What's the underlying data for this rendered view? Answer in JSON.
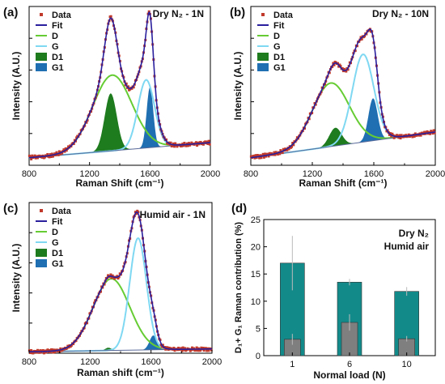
{
  "colors": {
    "data": "#c0392b",
    "fit": "#2a1f9d",
    "D": "#66cc33",
    "G": "#7fd8f2",
    "D1": "#1e7b1e",
    "G1": "#1f6fb2",
    "panel_title": "#2f8f9d",
    "humid_title": "#6b6b6b",
    "bar_dry": "#138a8a",
    "bar_humid": "#7f7f7f",
    "baseline": "#5a6a9a"
  },
  "panels": [
    {
      "letter": "(a)",
      "title": "Dry N₂ - 1N",
      "title_color": "panel_title",
      "xlabel": "Raman Shift (cm⁻¹)",
      "ylabel": "Intensity (A.U.)",
      "xlim": [
        800,
        2000
      ],
      "xticks": [
        "800",
        "1200",
        "1600",
        "2000"
      ],
      "legend": [
        "Data",
        "Fit",
        "D",
        "G",
        "D1",
        "G1"
      ],
      "baseline": [
        0.05,
        0.15
      ],
      "peaks": {
        "D": {
          "center": 1350,
          "width": 130,
          "height": 0.5
        },
        "G": {
          "center": 1575,
          "width": 55,
          "height": 0.45
        },
        "D1": {
          "center": 1340,
          "width": 40,
          "height": 0.38
        },
        "G1": {
          "center": 1600,
          "width": 22,
          "height": 0.4
        }
      }
    },
    {
      "letter": "(b)",
      "title": "Dry N₂ - 10N",
      "title_color": "panel_title",
      "xlabel": "Raman Shift (cm⁻¹)",
      "ylabel": "Intensity (A.U.)",
      "xlim": [
        800,
        2000
      ],
      "xticks": [
        "800",
        "1200",
        "1600",
        "2000"
      ],
      "legend": [
        "Data",
        "Fit",
        "D",
        "G",
        "D1",
        "G1"
      ],
      "baseline": [
        0.05,
        0.22
      ],
      "peaks": {
        "D": {
          "center": 1320,
          "width": 120,
          "height": 0.42
        },
        "G": {
          "center": 1530,
          "width": 70,
          "height": 0.58
        },
        "D1": {
          "center": 1350,
          "width": 40,
          "height": 0.12
        },
        "G1": {
          "center": 1595,
          "width": 30,
          "height": 0.28
        }
      }
    },
    {
      "letter": "(c)",
      "title": "Humid air - 1N",
      "title_color": "humid_title",
      "xlabel": "Raman shift (cm⁻¹)",
      "ylabel": "Intensity (A.U.)",
      "xlim": [
        800,
        2000
      ],
      "xticks": [
        "800",
        "1200",
        "1600",
        "2000"
      ],
      "legend": [
        "Data",
        "Fit",
        "D",
        "G",
        "D1",
        "G1"
      ],
      "baseline": [
        0.01,
        0.03
      ],
      "peaks": {
        "D": {
          "center": 1340,
          "width": 120,
          "height": 0.5
        },
        "G": {
          "center": 1515,
          "width": 55,
          "height": 0.78
        },
        "D1": {
          "center": 1320,
          "width": 20,
          "height": 0.02
        },
        "G1": {
          "center": 1615,
          "width": 25,
          "height": 0.1
        }
      }
    }
  ],
  "chart_data": {
    "type": "bar",
    "letter": "(d)",
    "categories": [
      "1",
      "6",
      "10"
    ],
    "series": [
      {
        "name": "Dry N₂",
        "values": [
          17.0,
          13.5,
          11.8
        ],
        "errors": [
          5.0,
          0.6,
          0.8
        ]
      },
      {
        "name": "Humid air",
        "values": [
          3.0,
          6.1,
          3.1
        ],
        "errors": [
          1.0,
          1.5,
          0.5
        ]
      }
    ],
    "xlabel": "Normal load (N)",
    "ylabel": "D₁+ G₁ Raman contribution (%)",
    "ylim": [
      0,
      25
    ],
    "yticks": [
      "0",
      "5",
      "10",
      "15",
      "20",
      "25"
    ],
    "legend_title_dry": "Dry N₂",
    "legend_title_humid": "Humid air"
  }
}
